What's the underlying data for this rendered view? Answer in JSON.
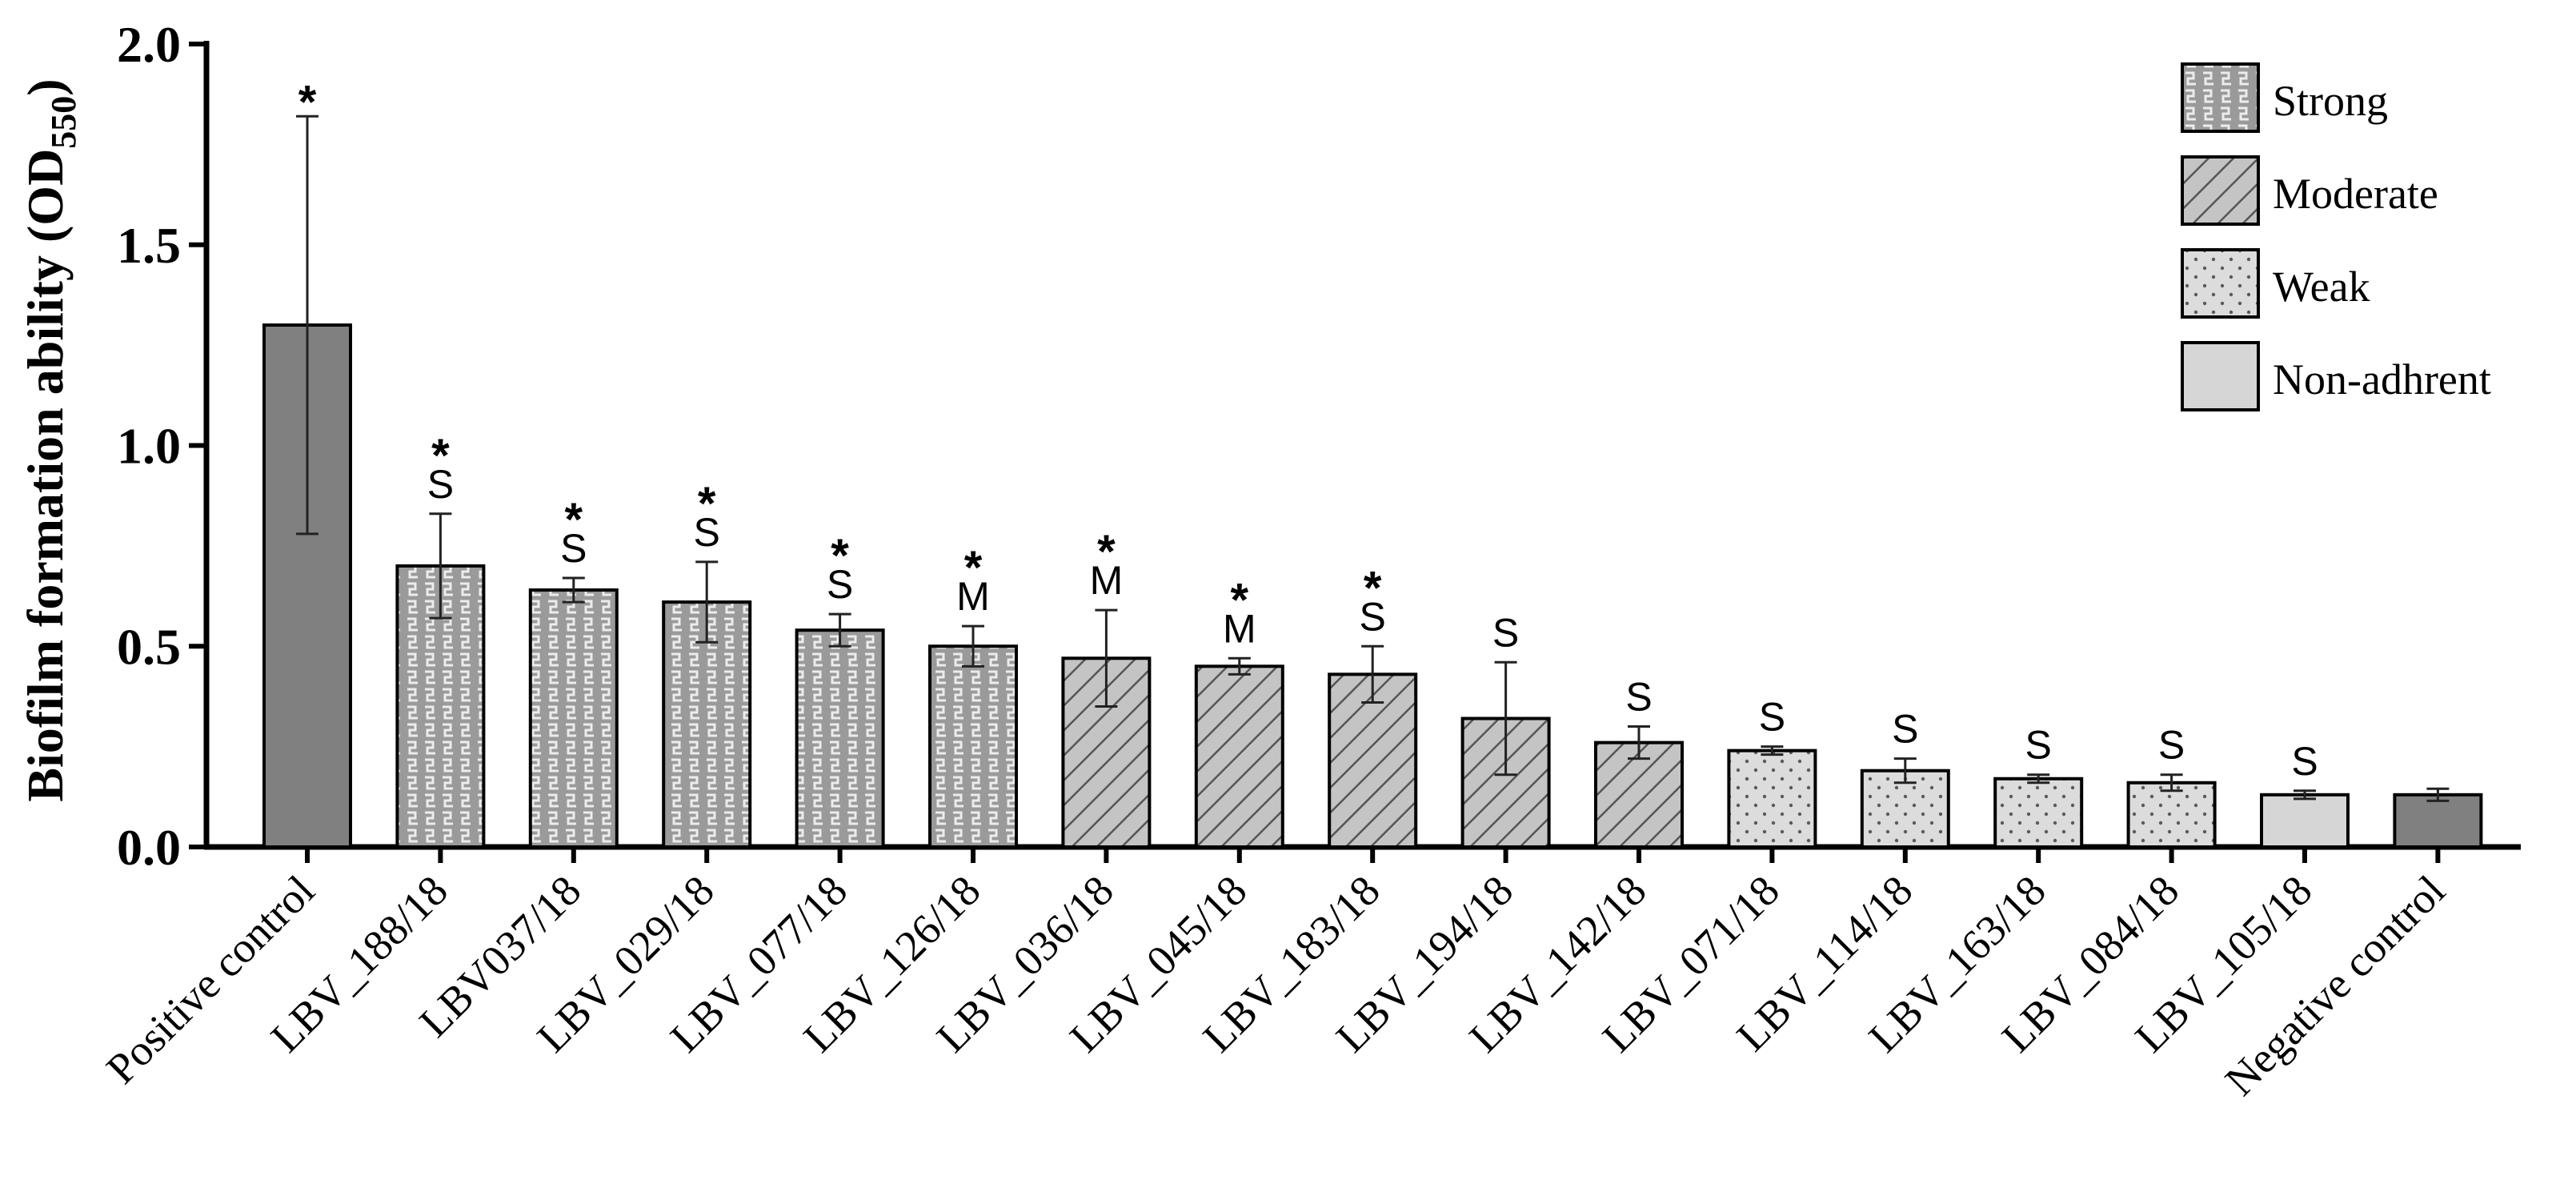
{
  "chart_data": {
    "type": "bar",
    "title": "",
    "xlabel": "",
    "ylabel": "Biofilm formation ability (OD",
    "ylabel_subscript": "550",
    "ylabel_close": ")",
    "ylim": [
      0,
      2.0
    ],
    "yticks": [
      "0.0",
      "0.5",
      "1.0",
      "1.5",
      "2.0"
    ],
    "categories": [
      "Positive control",
      "LBV_188/18",
      "LBV037/18",
      "LBV_029/18",
      "LBV_077/18",
      "LBV_126/18",
      "LBV_036/18",
      "LBV_045/18",
      "LBV_183/18",
      "LBV_194/18",
      "LBV_142/18",
      "LBV_071/18",
      "LBV_114/18",
      "LBV_163/18",
      "LBV_084/18",
      "LBV_105/18",
      "Negative control"
    ],
    "values": [
      1.3,
      0.7,
      0.64,
      0.61,
      0.54,
      0.5,
      0.47,
      0.45,
      0.43,
      0.32,
      0.26,
      0.24,
      0.19,
      0.17,
      0.16,
      0.13,
      0.13
    ],
    "errors": [
      0.52,
      0.13,
      0.03,
      0.1,
      0.04,
      0.05,
      0.12,
      0.02,
      0.07,
      0.14,
      0.04,
      0.01,
      0.03,
      0.01,
      0.02,
      0.01,
      0.015
    ],
    "category_class": [
      "control",
      "strong",
      "strong",
      "strong",
      "strong",
      "strong",
      "moderate",
      "moderate",
      "moderate",
      "moderate",
      "moderate",
      "weak",
      "weak",
      "weak",
      "weak",
      "nonadherent",
      "control"
    ],
    "letters": [
      "",
      "S",
      "S",
      "S",
      "S",
      "M",
      "M",
      "M",
      "S",
      "S",
      "S",
      "S",
      "S",
      "S",
      "S",
      "S",
      ""
    ],
    "stars": [
      "*",
      "*",
      "*",
      "*",
      "*",
      "*",
      "*",
      "*",
      "*",
      "",
      "",
      "",
      "",
      "",
      "",
      "",
      ""
    ],
    "legend": [
      {
        "key": "strong",
        "label": "Strong"
      },
      {
        "key": "moderate",
        "label": "Moderate"
      },
      {
        "key": "weak",
        "label": "Weak"
      },
      {
        "key": "nonadherent",
        "label": "Non-adhrent"
      }
    ],
    "legend_position": "top-right",
    "colors": {
      "control": "#808080",
      "strong": "#9a9a9a",
      "moderate": "#c4c4c4",
      "weak": "#d9d9d9",
      "nonadherent": "#d6d6d6",
      "stroke": "#000000"
    }
  }
}
